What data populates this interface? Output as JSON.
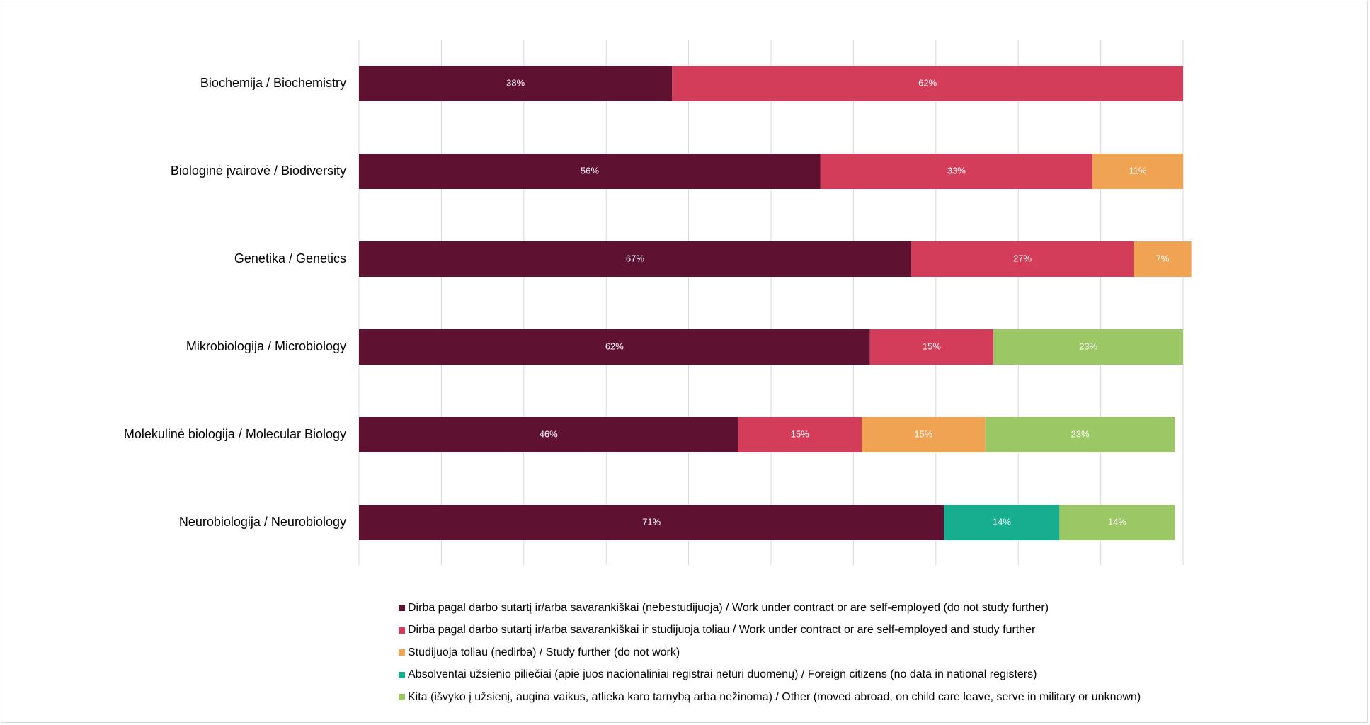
{
  "chart_data": {
    "type": "bar",
    "orientation": "horizontal",
    "stacked": true,
    "title": "",
    "xlabel": "",
    "ylabel": "",
    "xlim": [
      0,
      100
    ],
    "grid": true,
    "legend_position": "bottom",
    "categories": [
      "Biochemija / Biochemistry",
      "Biologinė įvairovė / Biodiversity",
      "Genetika / Genetics",
      "Mikrobiologija / Microbiology",
      "Molekulinė biologija / Molecular Biology",
      "Neurobiologija / Neurobiology"
    ],
    "series": [
      {
        "name": "Dirba pagal darbo sutartį ir/arba savarankiškai (nebestudijuoja) / Work under contract or are self-employed (do not study further)",
        "color": "#5e1131",
        "values": [
          38,
          56,
          67,
          62,
          46,
          71
        ],
        "labels": [
          "38%",
          "56%",
          "67%",
          "62%",
          "46%",
          "71%"
        ]
      },
      {
        "name": "Dirba pagal darbo sutartį ir/arba savarankiškai  ir studijuoja toliau / Work under contract or are self-employed and study further",
        "color": "#d43d59",
        "values": [
          62,
          33,
          27,
          15,
          15,
          0
        ],
        "labels": [
          "62%",
          "33%",
          "27%",
          "15%",
          "15%",
          ""
        ]
      },
      {
        "name": "Studijuoja toliau (nedirba) / Study further (do not work)",
        "color": "#f0a352",
        "values": [
          0,
          11,
          7,
          0,
          15,
          0
        ],
        "labels": [
          "",
          "11%",
          "7%",
          "",
          "15%",
          ""
        ]
      },
      {
        "name": "Absolventai užsienio piliečiai (apie juos nacionaliniai registrai neturi duomenų) / Foreign citizens (no data in national registers)",
        "color": "#17ae90",
        "values": [
          0,
          0,
          0,
          0,
          0,
          14
        ],
        "labels": [
          "",
          "",
          "",
          "",
          "",
          "14%"
        ]
      },
      {
        "name": "Kita (išvyko į užsienį, augina vaikus, atlieka karo tarnybą arba nežinoma) / Other (moved abroad, on child care leave, serve in military or unknown)",
        "color": "#9bc865",
        "values": [
          0,
          0,
          0,
          23,
          23,
          14
        ],
        "labels": [
          "",
          "",
          "",
          "23%",
          "23%",
          "14%"
        ]
      }
    ]
  }
}
